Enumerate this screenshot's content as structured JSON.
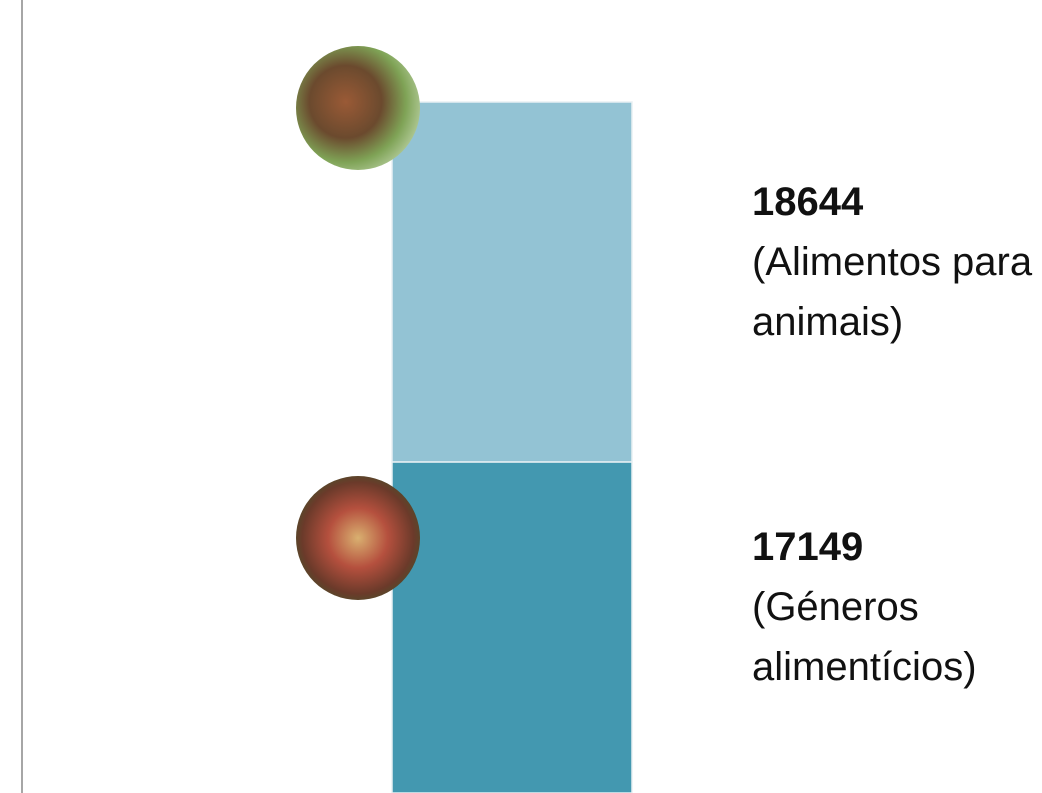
{
  "chart_data": {
    "type": "stacked_bar",
    "series": [
      {
        "name": "(Géneros alimentícios)",
        "color": "#4398b0",
        "values": [
          17149
        ]
      },
      {
        "name": "(Alimentos para animais)",
        "color": "#93c3d4",
        "values": [
          18644
        ]
      }
    ]
  }
}
